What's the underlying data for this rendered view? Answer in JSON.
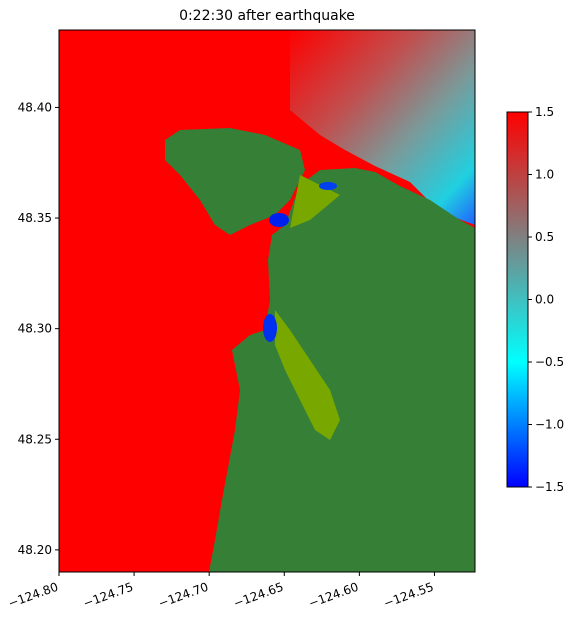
{
  "chart_data": {
    "type": "heatmap",
    "title": "0:22:30 after earthquake",
    "xlim": [
      -124.8,
      -124.523
    ],
    "ylim": [
      48.19,
      48.435
    ],
    "xticks": [
      {
        "value": -124.8,
        "label": "−124.80"
      },
      {
        "value": -124.75,
        "label": "−124.75"
      },
      {
        "value": -124.7,
        "label": "−124.70"
      },
      {
        "value": -124.65,
        "label": "−124.65"
      },
      {
        "value": -124.6,
        "label": "−124.60"
      },
      {
        "value": -124.55,
        "label": "−124.55"
      }
    ],
    "yticks": [
      {
        "value": 48.2,
        "label": "48.20"
      },
      48.25,
      {
        "value": 48.3,
        "label": "48.30"
      },
      48.35,
      {
        "value": 48.4,
        "label": "48.40"
      }
    ],
    "colorbar": {
      "lim": [
        -1.5,
        1.5
      ],
      "ticks": [
        {
          "value": -1.5,
          "label": "−1.5"
        },
        {
          "value": -1.0,
          "label": "−1.0"
        },
        {
          "value": -0.5,
          "label": "−0.5"
        },
        {
          "value": 0,
          "label": "0.0"
        },
        0.5,
        {
          "value": 1.0,
          "label": "1.0"
        },
        1.5
      ],
      "colors": [
        "#0000ff",
        "#00ffff",
        "#808080",
        "#ff0000"
      ]
    }
  }
}
